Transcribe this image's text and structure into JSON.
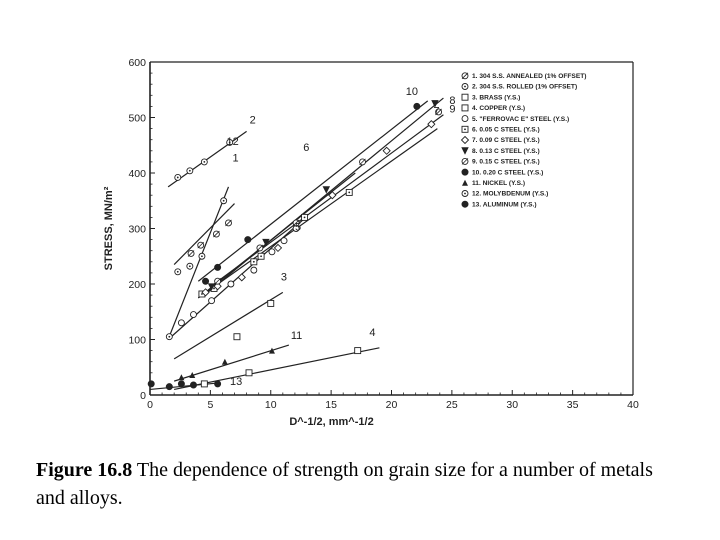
{
  "chart_data": {
    "type": "scatter",
    "title": "",
    "xlabel": "D^-1/2, mm^-1/2",
    "ylabel": "STRESS, MN/m²",
    "xlim": [
      0,
      40
    ],
    "ylim": [
      0,
      600
    ],
    "x_ticks": [
      0,
      5,
      10,
      15,
      20,
      25,
      30,
      35,
      40
    ],
    "y_ticks": [
      0,
      100,
      200,
      300,
      400,
      500,
      600
    ],
    "grid": false,
    "legend_position": "top-right",
    "series": [
      {
        "name": "1. 304 S.S. ANNEALED (1% OFFSET)",
        "label": "1",
        "marker": "circle-slash",
        "x": [
          3.4,
          4.2,
          5.5,
          6.5
        ],
        "y": [
          255,
          270,
          290,
          310
        ],
        "fit": [
          [
            2,
            235
          ],
          [
            7,
            345
          ]
        ]
      },
      {
        "name": "2. 304 S.S. ROLLED (1% OFFSET)",
        "label": "2",
        "marker": "circle-dot",
        "x": [
          2.3,
          3.3,
          4.5,
          6.6
        ],
        "y": [
          392,
          404,
          420,
          455
        ],
        "fit": [
          [
            1.5,
            375
          ],
          [
            8,
            475
          ]
        ]
      },
      {
        "name": "3. BRASS (Y.S.)",
        "label": "3",
        "marker": "square",
        "x": [
          7.2,
          10.0
        ],
        "y": [
          105,
          165
        ],
        "fit": [
          [
            2,
            65
          ],
          [
            11,
            185
          ]
        ]
      },
      {
        "name": "4. COPPER (Y.S.)",
        "label": "4",
        "marker": "square",
        "x": [
          4.5,
          8.2,
          17.2
        ],
        "y": [
          20,
          40,
          80
        ],
        "fit": [
          [
            2,
            10
          ],
          [
            19,
            85
          ]
        ]
      },
      {
        "name": "5. \"FERROVAC E\" STEEL (Y.S.)",
        "label": "5",
        "marker": "circle",
        "x": [
          2.6,
          3.6,
          5.1,
          6.7,
          8.6,
          10.1,
          11.1,
          12.1
        ],
        "y": [
          130,
          145,
          170,
          200,
          225,
          258,
          278,
          300
        ],
        "fit": [
          [
            1.5,
            100
          ],
          [
            13,
            322
          ]
        ]
      },
      {
        "name": "6. 0.05 C STEEL (Y.S.)",
        "label": "6",
        "marker": "square-dot",
        "x": [
          4.3,
          5.3,
          8.6,
          9.2,
          12.8,
          16.5
        ],
        "y": [
          182,
          192,
          240,
          250,
          320,
          365
        ],
        "fit": [
          [
            4,
            175
          ],
          [
            17,
            400
          ]
        ]
      },
      {
        "name": "7. 0.09 C STEEL (Y.S.)",
        "label": "7",
        "marker": "diamond",
        "x": [
          4.6,
          5.6,
          7.6,
          10.6,
          15.1,
          19.6,
          23.3
        ],
        "y": [
          185,
          196,
          212,
          265,
          360,
          440,
          488
        ],
        "fit": [
          [
            4,
            175
          ],
          [
            23.8,
            480
          ]
        ]
      },
      {
        "name": "8. 0.13 C STEEL (Y.S.)",
        "label": "8",
        "marker": "triangle-down",
        "x": [
          5.1,
          9.6,
          14.6,
          23.6
        ],
        "y": [
          195,
          275,
          370,
          525
        ],
        "fit": [
          [
            4.5,
            180
          ],
          [
            24.3,
            535
          ]
        ]
      },
      {
        "name": "9. 0.15 C STEEL (Y.S.)",
        "label": "9",
        "marker": "circle-slash",
        "x": [
          5.6,
          9.1,
          12.1,
          17.6,
          23.9
        ],
        "y": [
          205,
          265,
          310,
          420,
          510
        ],
        "fit": [
          [
            5,
            195
          ],
          [
            24.3,
            505
          ]
        ]
      },
      {
        "name": "10. 0.20 C STEEL (Y.S.)",
        "label": "10",
        "marker": "filled-circle",
        "x": [
          4.6,
          5.6,
          8.1,
          22.1
        ],
        "y": [
          205,
          230,
          280,
          520
        ],
        "fit": [
          [
            4,
            205
          ],
          [
            23,
            530
          ]
        ]
      },
      {
        "name": "11. NICKEL (Y.S.)",
        "label": "11",
        "marker": "filled-triangle",
        "x": [
          2.6,
          3.5,
          6.2,
          10.1
        ],
        "y": [
          32,
          36,
          60,
          80
        ],
        "fit": [
          [
            2,
            25
          ],
          [
            11.5,
            90
          ]
        ]
      },
      {
        "name": "12. MOLYBDENUM (Y.S.)",
        "label": "12",
        "marker": "circle-dot",
        "x": [
          1.6,
          2.3,
          3.3,
          4.3,
          6.1
        ],
        "y": [
          105,
          222,
          232,
          250,
          350
        ],
        "fit": [
          [
            1.5,
            100
          ],
          [
            6.5,
            375
          ]
        ]
      },
      {
        "name": "13. ALUMINUM (Y.S.)",
        "label": "13",
        "marker": "filled-circle",
        "x": [
          0.1,
          1.6,
          2.6,
          3.6,
          5.6
        ],
        "y": [
          20,
          15,
          20,
          18,
          20
        ],
        "fit": [
          [
            0,
            10
          ],
          [
            5.8,
            22
          ]
        ]
      }
    ],
    "line_label_text": [
      "10",
      "8",
      "2",
      "12",
      "1",
      "6",
      "5",
      "7",
      "9",
      "3",
      "11",
      "4",
      "13"
    ]
  },
  "caption": {
    "bold": "Figure 16.8",
    "text": " The dependence of strength on grain size for a number of metals and alloys."
  }
}
